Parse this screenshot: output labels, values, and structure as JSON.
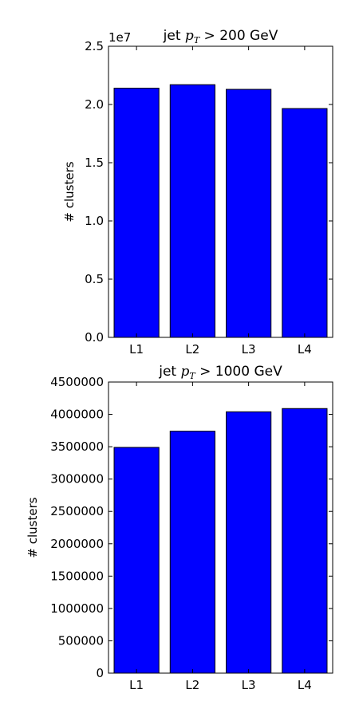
{
  "chart_data": [
    {
      "type": "bar",
      "title_prefix": "jet ",
      "title_math": "p",
      "title_sub": "T",
      "title_suffix": " > 200 GeV",
      "ylabel": "# clusters",
      "xlabel": "",
      "categories": [
        "L1",
        "L2",
        "L3",
        "L4"
      ],
      "values": [
        21400000,
        21700000,
        21300000,
        19650000
      ],
      "ylim": [
        0,
        25000000
      ],
      "yticks": [
        0,
        5000000,
        10000000,
        15000000,
        20000000,
        25000000
      ],
      "ytick_labels": [
        "0.0",
        "0.5",
        "1.0",
        "1.5",
        "2.0",
        "2.5"
      ],
      "offset_text": "1e7",
      "bar_color": "#0000ff",
      "grid": false
    },
    {
      "type": "bar",
      "title_prefix": "jet ",
      "title_math": "p",
      "title_sub": "T",
      "title_suffix": " > 1000 GeV",
      "ylabel": "# clusters",
      "xlabel": "",
      "categories": [
        "L1",
        "L2",
        "L3",
        "L4"
      ],
      "values": [
        3490000,
        3740000,
        4040000,
        4090000
      ],
      "ylim": [
        0,
        4500000
      ],
      "yticks": [
        0,
        500000,
        1000000,
        1500000,
        2000000,
        2500000,
        3000000,
        3500000,
        4000000,
        4500000
      ],
      "ytick_labels": [
        "0",
        "500000",
        "1000000",
        "1500000",
        "2000000",
        "2500000",
        "3000000",
        "3500000",
        "4000000",
        "4500000"
      ],
      "offset_text": "",
      "bar_color": "#0000ff",
      "grid": false
    }
  ]
}
